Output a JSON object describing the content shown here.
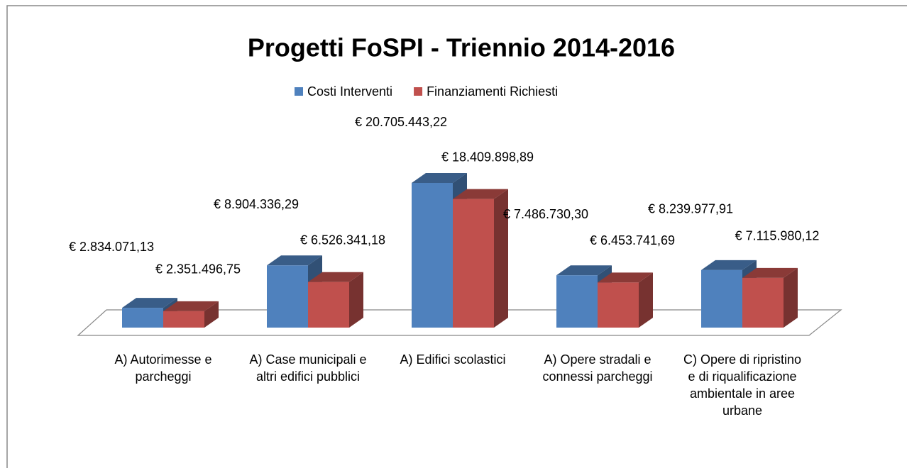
{
  "chart_data": {
    "type": "bar3d",
    "title": "Progetti FoSPI  -  Triennio 2014-2016",
    "categories": [
      "A) Autorimesse e parcheggi",
      "A) Case municipali e altri edifici pubblici",
      "A) Edifici scolastici",
      "A) Opere stradali e connessi parcheggi",
      "C) Opere di ripristino e di riqualificazione ambientale in aree urbane"
    ],
    "series": [
      {
        "name": "Costi Interventi",
        "color": "#4f81bd",
        "values": [
          2834071.13,
          8904336.29,
          20705443.22,
          7486730.3,
          8239977.91
        ],
        "value_labels": [
          "€ 2.834.071,13",
          "€ 8.904.336,29",
          "€ 20.705.443,22",
          "€ 7.486.730,30",
          "€ 8.239.977,91"
        ]
      },
      {
        "name": "Finanziamenti Richiesti",
        "color": "#c0504d",
        "values": [
          2351496.75,
          6526341.18,
          18409898.89,
          6453741.69,
          7115980.12
        ],
        "value_labels": [
          "€ 2.351.496,75",
          "€ 6.526.341,18",
          "€ 18.409.898,89",
          "€ 6.453.741,69",
          "€ 7.115.980,12"
        ]
      }
    ],
    "legend": "top"
  }
}
